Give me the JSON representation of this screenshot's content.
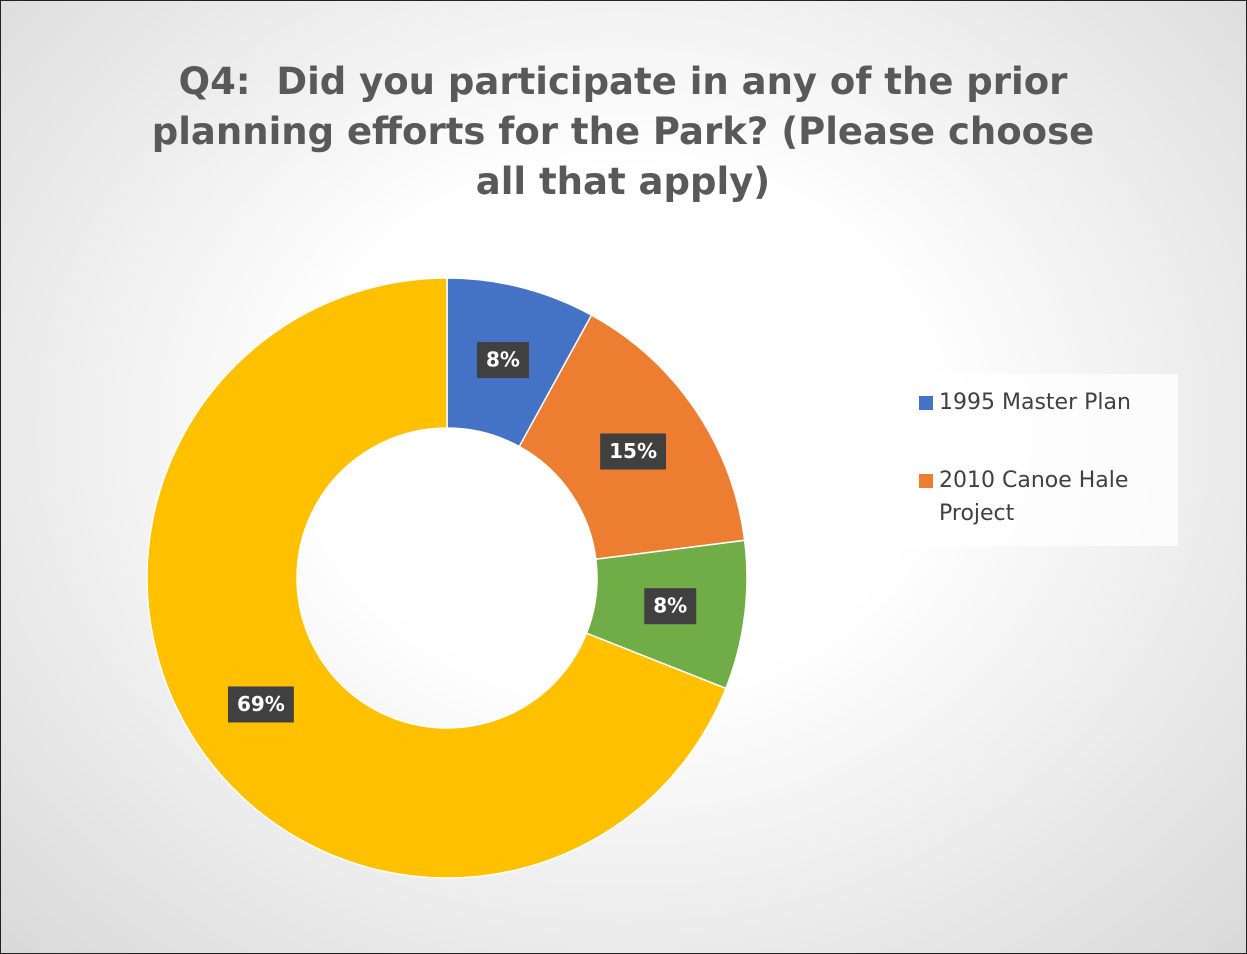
{
  "chart_data": {
    "type": "donut",
    "title": "Q4:  Did you participate in any of the prior planning efforts for the Park? (Please choose all that apply)",
    "categories": [
      "1995 Master Plan",
      "2010 Canoe Hale Project",
      null,
      null
    ],
    "values": [
      8,
      15,
      8,
      69
    ],
    "value_labels": [
      "8%",
      "15%",
      "8%",
      "69%"
    ],
    "colors": [
      "#4472c4",
      "#ed7d31",
      "#70ad47",
      "#ffc000"
    ],
    "legend": "right"
  }
}
